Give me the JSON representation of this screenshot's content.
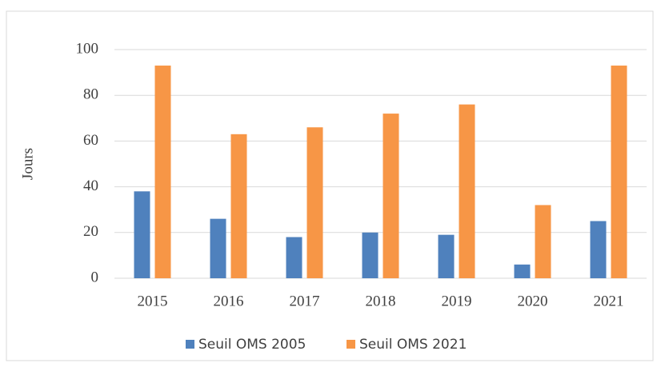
{
  "chart_data": {
    "type": "bar",
    "y_label": "Jours",
    "categories": [
      "2015",
      "2016",
      "2017",
      "2018",
      "2019",
      "2020",
      "2021"
    ],
    "series": [
      {
        "name": "Seuil OMS 2005",
        "color": "#4f81bd",
        "values": [
          38,
          26,
          18,
          20,
          19,
          6,
          25
        ]
      },
      {
        "name": "Seuil OMS 2021",
        "color": "#f79646",
        "values": [
          93,
          63,
          66,
          72,
          76,
          32,
          93
        ]
      }
    ],
    "ylim": [
      0,
      100
    ],
    "yticks": [
      0,
      20,
      40,
      60,
      80,
      100
    ],
    "grid": true,
    "legend": "bottom"
  }
}
